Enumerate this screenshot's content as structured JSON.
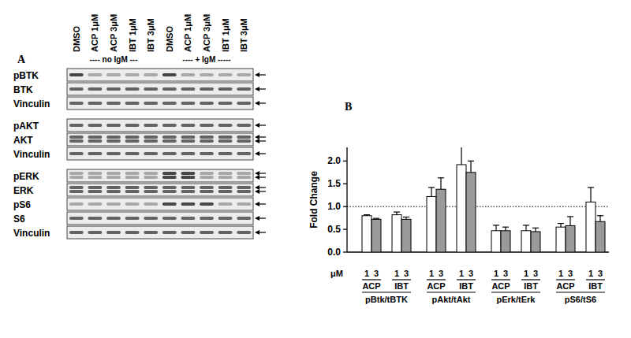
{
  "panel_a": {
    "label": "A",
    "lanes": [
      "DMSO",
      "ACP 1μM",
      "ACP 3μM",
      "IBT 1μM",
      "IBT 3μM",
      "DMSO",
      "ACP 1μM",
      "ACP 3μM",
      "IBT 1μM",
      "IBT 3μM"
    ],
    "conditions": [
      "---- no IgM ---",
      "---- + IgM -----"
    ],
    "blot_groups": [
      [
        "pBTK",
        "BTK",
        "Vinculin"
      ],
      [
        "pAKT",
        "AKT",
        "Vinculin"
      ],
      [
        "pERK",
        "ERK",
        "pS6",
        "S6",
        "Vinculin"
      ]
    ]
  },
  "chart_data": {
    "type": "bar",
    "title": "B",
    "y_label": "Fold Change",
    "x_label": "μM",
    "categories": [
      "ACP",
      "IBT",
      "ACP",
      "IBT",
      "ACP",
      "IBT",
      "ACP",
      "IBT"
    ],
    "groups": [
      "pBtk/tBTK",
      "pAkt/tAkt",
      "pErk/tErk",
      "pS6/tS6"
    ],
    "series": [
      {
        "name": "1",
        "color": "#ffffff",
        "values": [
          0.8,
          0.82,
          1.22,
          1.92,
          0.47,
          0.47,
          0.55,
          1.1
        ],
        "errors": [
          0.02,
          0.06,
          0.2,
          0.4,
          0.12,
          0.12,
          0.08,
          0.32
        ]
      },
      {
        "name": "3",
        "color": "#9a9a9a",
        "values": [
          0.72,
          0.72,
          1.38,
          1.75,
          0.47,
          0.45,
          0.58,
          0.67
        ],
        "errors": [
          0.02,
          0.05,
          0.25,
          0.25,
          0.08,
          0.08,
          0.2,
          0.13
        ]
      }
    ],
    "ylim": [
      0,
      2.3
    ],
    "yticks": [
      {
        "value": 0,
        "label": "0.0"
      },
      {
        "value": 0.5,
        "label": "0.5"
      },
      {
        "value": 1,
        "label": "1.0"
      },
      {
        "value": 1.5,
        "label": "1.5"
      },
      {
        "value": 2,
        "label": "2.0"
      }
    ],
    "reference_line": 1,
    "grid": false
  }
}
